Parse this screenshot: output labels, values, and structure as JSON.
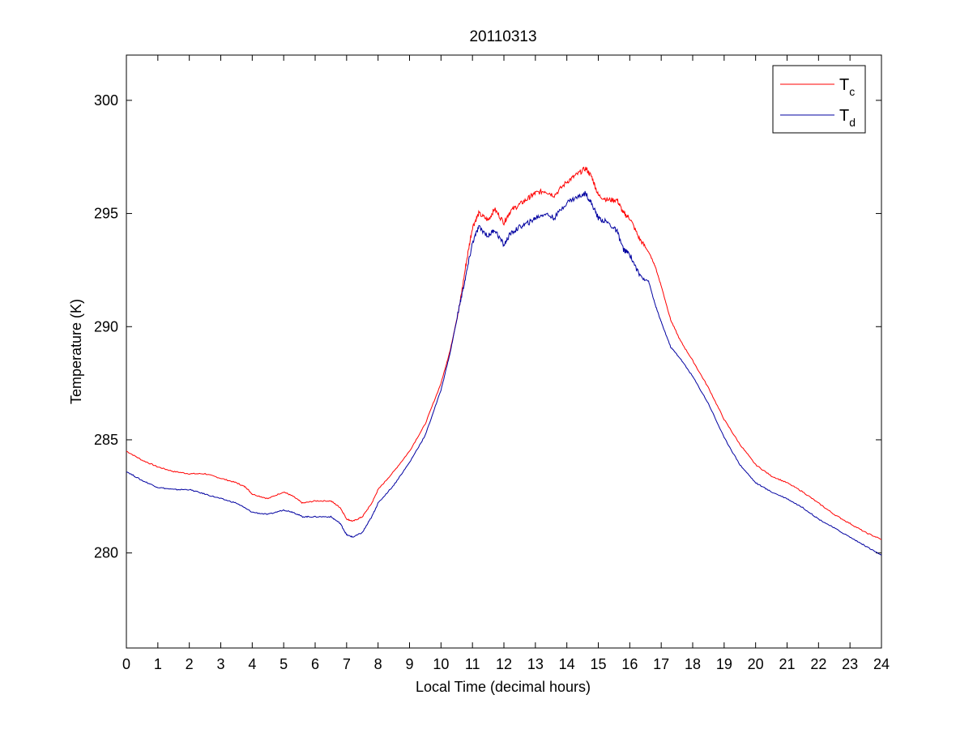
{
  "chart_data": {
    "type": "line",
    "title": "20110313",
    "xlabel": "Local Time (decimal hours)",
    "ylabel": "Temperature (K)",
    "xlim": [
      0,
      24
    ],
    "ylim": [
      275.8,
      302
    ],
    "xticks": [
      "0",
      "1",
      "2",
      "3",
      "4",
      "5",
      "6",
      "7",
      "8",
      "9",
      "10",
      "11",
      "12",
      "13",
      "14",
      "15",
      "16",
      "17",
      "18",
      "19",
      "20",
      "21",
      "22",
      "23",
      "24"
    ],
    "yticks": [
      "280",
      "285",
      "290",
      "295",
      "300"
    ],
    "grid": false,
    "legend_position": "top-right",
    "series": [
      {
        "name": "Tc",
        "legend_main": "T",
        "legend_sub": "c",
        "color": "#ff0000",
        "points": [
          [
            0,
            284.5
          ],
          [
            0.5,
            284.1
          ],
          [
            1,
            283.8
          ],
          [
            1.5,
            283.6
          ],
          [
            2,
            283.5
          ],
          [
            2.5,
            283.5
          ],
          [
            3,
            283.3
          ],
          [
            3.5,
            283.1
          ],
          [
            3.8,
            282.9
          ],
          [
            4,
            282.6
          ],
          [
            4.5,
            282.4
          ],
          [
            5,
            282.7
          ],
          [
            5.3,
            282.5
          ],
          [
            5.6,
            282.2
          ],
          [
            6,
            282.3
          ],
          [
            6.5,
            282.3
          ],
          [
            6.8,
            282.0
          ],
          [
            7.0,
            281.5
          ],
          [
            7.2,
            281.4
          ],
          [
            7.5,
            281.6
          ],
          [
            7.8,
            282.2
          ],
          [
            8,
            282.8
          ],
          [
            8.5,
            283.6
          ],
          [
            9,
            284.5
          ],
          [
            9.5,
            285.7
          ],
          [
            10,
            287.5
          ],
          [
            10.3,
            289.0
          ],
          [
            10.6,
            291.0
          ],
          [
            10.8,
            292.8
          ],
          [
            11,
            294.4
          ],
          [
            11.2,
            295.0
          ],
          [
            11.5,
            294.7
          ],
          [
            11.7,
            295.2
          ],
          [
            12,
            294.6
          ],
          [
            12.2,
            295.1
          ],
          [
            12.5,
            295.4
          ],
          [
            12.8,
            295.7
          ],
          [
            13,
            295.9
          ],
          [
            13.3,
            296.0
          ],
          [
            13.6,
            295.8
          ],
          [
            14,
            296.4
          ],
          [
            14.3,
            296.7
          ],
          [
            14.6,
            297.0
          ],
          [
            14.8,
            296.6
          ],
          [
            15,
            295.8
          ],
          [
            15.3,
            295.6
          ],
          [
            15.6,
            295.6
          ],
          [
            15.8,
            295.0
          ],
          [
            16,
            294.8
          ],
          [
            16.3,
            293.9
          ],
          [
            16.6,
            293.3
          ],
          [
            16.8,
            292.7
          ],
          [
            17,
            291.8
          ],
          [
            17.3,
            290.3
          ],
          [
            17.6,
            289.4
          ],
          [
            18,
            288.5
          ],
          [
            18.5,
            287.3
          ],
          [
            19,
            285.9
          ],
          [
            19.5,
            284.8
          ],
          [
            20,
            283.9
          ],
          [
            20.5,
            283.4
          ],
          [
            21,
            283.1
          ],
          [
            21.5,
            282.7
          ],
          [
            22,
            282.2
          ],
          [
            22.5,
            281.7
          ],
          [
            23,
            281.3
          ],
          [
            23.5,
            280.9
          ],
          [
            24,
            280.6
          ]
        ]
      },
      {
        "name": "Td",
        "legend_main": "T",
        "legend_sub": "d",
        "color": "#0000a0",
        "points": [
          [
            0,
            283.6
          ],
          [
            0.5,
            283.2
          ],
          [
            1,
            282.9
          ],
          [
            1.5,
            282.8
          ],
          [
            2,
            282.8
          ],
          [
            2.5,
            282.6
          ],
          [
            3,
            282.4
          ],
          [
            3.5,
            282.2
          ],
          [
            4,
            281.8
          ],
          [
            4.5,
            281.7
          ],
          [
            5,
            281.9
          ],
          [
            5.3,
            281.8
          ],
          [
            5.6,
            281.6
          ],
          [
            6,
            281.6
          ],
          [
            6.5,
            281.6
          ],
          [
            6.8,
            281.3
          ],
          [
            7.0,
            280.8
          ],
          [
            7.2,
            280.7
          ],
          [
            7.5,
            280.9
          ],
          [
            7.8,
            281.6
          ],
          [
            8,
            282.2
          ],
          [
            8.5,
            283.0
          ],
          [
            9,
            284.0
          ],
          [
            9.5,
            285.2
          ],
          [
            10,
            287.2
          ],
          [
            10.3,
            288.9
          ],
          [
            10.6,
            291.0
          ],
          [
            10.8,
            292.3
          ],
          [
            11,
            293.7
          ],
          [
            11.2,
            294.4
          ],
          [
            11.5,
            294.0
          ],
          [
            11.7,
            294.3
          ],
          [
            12,
            293.6
          ],
          [
            12.2,
            294.1
          ],
          [
            12.5,
            294.4
          ],
          [
            12.8,
            294.6
          ],
          [
            13,
            294.8
          ],
          [
            13.3,
            295.0
          ],
          [
            13.6,
            294.8
          ],
          [
            14,
            295.5
          ],
          [
            14.3,
            295.7
          ],
          [
            14.6,
            295.9
          ],
          [
            14.8,
            295.4
          ],
          [
            15,
            294.8
          ],
          [
            15.3,
            294.6
          ],
          [
            15.6,
            294.2
          ],
          [
            15.8,
            293.4
          ],
          [
            16,
            293.2
          ],
          [
            16.3,
            292.3
          ],
          [
            16.6,
            292.0
          ],
          [
            16.8,
            291.0
          ],
          [
            17,
            290.2
          ],
          [
            17.3,
            289.1
          ],
          [
            17.6,
            288.6
          ],
          [
            18,
            287.8
          ],
          [
            18.5,
            286.6
          ],
          [
            19,
            285.1
          ],
          [
            19.5,
            283.9
          ],
          [
            20,
            283.1
          ],
          [
            20.5,
            282.7
          ],
          [
            21,
            282.4
          ],
          [
            21.5,
            282.0
          ],
          [
            22,
            281.5
          ],
          [
            22.5,
            281.1
          ],
          [
            23,
            280.7
          ],
          [
            23.5,
            280.3
          ],
          [
            24,
            279.9
          ]
        ]
      }
    ]
  }
}
